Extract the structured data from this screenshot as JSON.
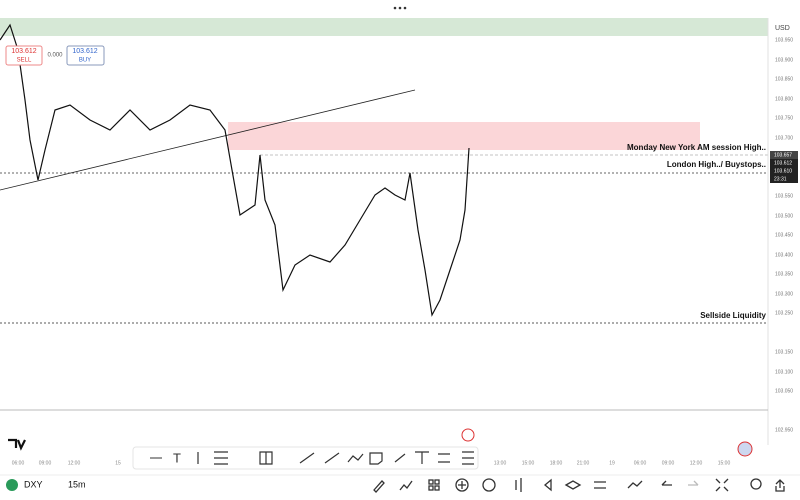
{
  "order_panel": {
    "sell_price": "103.612",
    "sell_label": "SELL",
    "spread": "0.000",
    "buy_price": "103.612",
    "buy_label": "BUY"
  },
  "annotations": [
    "Monday New York AM session High..",
    "London High../ Buystops..",
    "Sellside Liquidity"
  ],
  "price_axis": {
    "currency": "USD",
    "labels": [
      "103.950",
      "103.900",
      "103.850",
      "103.800",
      "103.750",
      "103.700",
      "103.550",
      "103.500",
      "103.450",
      "103.400",
      "103.350",
      "103.300",
      "103.250",
      "103.150",
      "103.100",
      "103.050",
      "102.950"
    ],
    "current": [
      "103.657",
      "103.612",
      "103.610",
      "23:31"
    ]
  },
  "time_axis": {
    "labels": [
      "06:00",
      "09:00",
      "12:00",
      "15",
      "13:00",
      "15:00",
      "18:00",
      "21:00",
      "19",
      "06:00",
      "09:00",
      "12:00",
      "15:00"
    ]
  },
  "footer": {
    "symbol": "DXY",
    "timeframe": "15m"
  }
}
